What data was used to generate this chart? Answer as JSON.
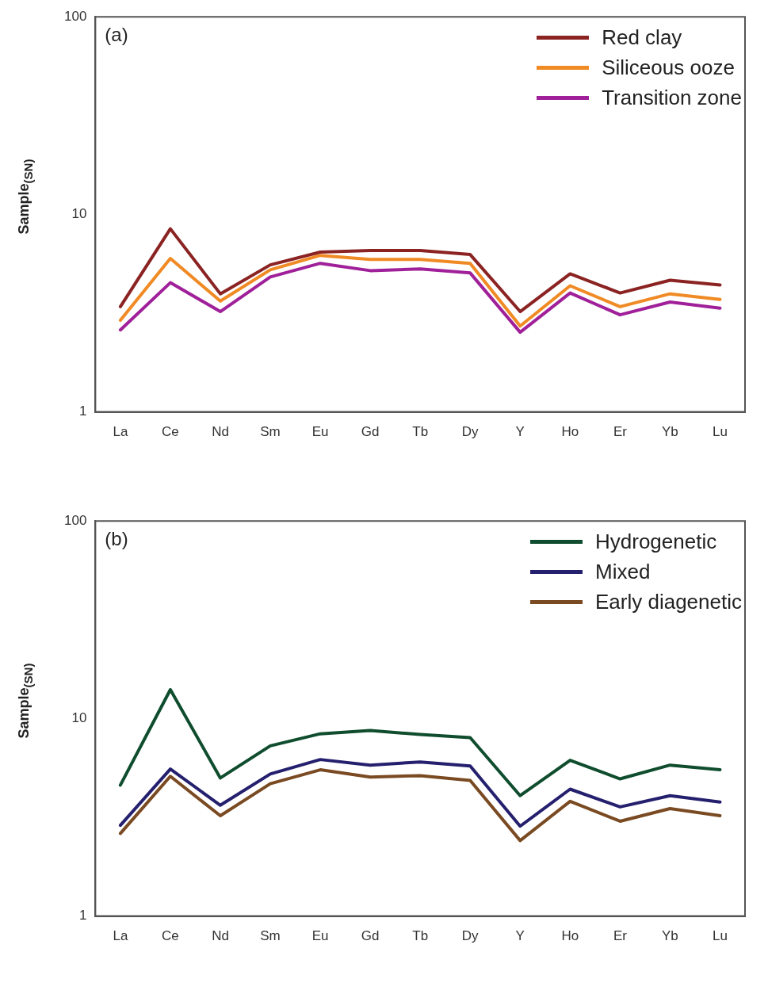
{
  "chart_data": [
    {
      "type": "line",
      "ylabel": "Sample$_{(SN)}$",
      "annotations": [
        "(a)"
      ],
      "categories": [
        "La",
        "Ce",
        "Nd",
        "Sm",
        "Eu",
        "Gd",
        "Tb",
        "Dy",
        "Y",
        "Ho",
        "Er",
        "Yb",
        "Lu"
      ],
      "log": "y",
      "ylim": [
        1,
        100
      ],
      "yticks": [
        1,
        10,
        100
      ],
      "grid": false,
      "legend": "top right",
      "marker": "none",
      "line_style": "solid",
      "series": [
        {
          "name": "Red clay",
          "color": "#8b2323",
          "values": [
            3.41,
            8.45,
            3.96,
            5.55,
            6.44,
            6.56,
            6.56,
            6.26,
            3.22,
            5.0,
            4.0,
            4.64,
            4.39
          ]
        },
        {
          "name": "Siliceous ooze",
          "color": "#f08a24",
          "values": [
            2.91,
            5.98,
            3.64,
            5.24,
            6.2,
            5.92,
            5.92,
            5.65,
            2.72,
            4.35,
            3.41,
            3.96,
            3.71
          ]
        },
        {
          "name": "Transition zone",
          "color": "#a0209a",
          "values": [
            2.6,
            4.51,
            3.22,
            4.82,
            5.65,
            5.19,
            5.29,
            5.05,
            2.53,
            4.0,
            3.1,
            3.6,
            3.35
          ]
        }
      ]
    },
    {
      "type": "line",
      "ylabel": "Sample$_{(SN)}$",
      "annotations": [
        "(b)"
      ],
      "categories": [
        "La",
        "Ce",
        "Nd",
        "Sm",
        "Eu",
        "Gd",
        "Tb",
        "Dy",
        "Y",
        "Ho",
        "Er",
        "Yb",
        "Lu"
      ],
      "log": "y",
      "ylim": [
        1,
        100
      ],
      "yticks": [
        1,
        10,
        100
      ],
      "grid": false,
      "legend": "top right",
      "marker": "none",
      "line_style": "solid",
      "series": [
        {
          "name": "Hydrogenetic",
          "color": "#0f4d2e",
          "values": [
            4.6,
            14.0,
            5.0,
            7.27,
            8.37,
            8.7,
            8.3,
            8.0,
            4.07,
            6.15,
            4.95,
            5.81,
            5.5
          ]
        },
        {
          "name": "Mixed",
          "color": "#25206e",
          "values": [
            2.88,
            5.55,
            3.64,
            5.24,
            6.2,
            5.81,
            6.03,
            5.75,
            2.85,
            4.39,
            3.57,
            4.07,
            3.78
          ]
        },
        {
          "name": "Early diagenetic",
          "color": "#7a4a22",
          "values": [
            2.62,
            5.1,
            3.22,
            4.68,
            5.5,
            5.05,
            5.14,
            4.86,
            2.41,
            3.81,
            3.02,
            3.5,
            3.22
          ]
        }
      ]
    }
  ]
}
